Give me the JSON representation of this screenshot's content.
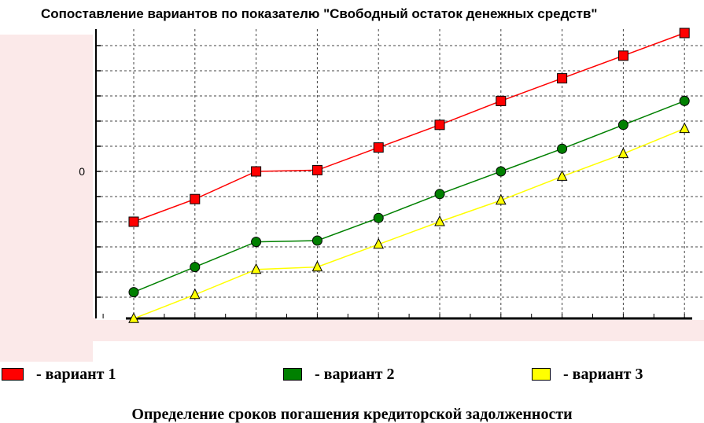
{
  "chart_data": {
    "type": "line",
    "title": "Сопоставление вариантов по показателю \"Свободный остаток денежных средств\"",
    "xlabel": "",
    "ylabel": "",
    "x": [
      1,
      2,
      3,
      4,
      5,
      6,
      7,
      8,
      9,
      10
    ],
    "y_tick_labels": [
      {
        "value": 0,
        "label": "0"
      }
    ],
    "ylim": [
      -6,
      5.5
    ],
    "grid": true,
    "legend_position": "bottom",
    "series": [
      {
        "name": "- вариант 1",
        "color": "#ff0000",
        "marker": "square",
        "values": [
          -2.0,
          -1.1,
          0.0,
          0.05,
          0.95,
          1.85,
          2.8,
          3.7,
          4.6,
          5.5
        ]
      },
      {
        "name": "- вариант 2",
        "color": "#008000",
        "marker": "circle",
        "values": [
          -4.8,
          -3.8,
          -2.8,
          -2.75,
          -1.85,
          -0.9,
          0.0,
          0.9,
          1.85,
          2.8
        ]
      },
      {
        "name": "- вариант 3",
        "color": "#ffff00",
        "marker": "triangle",
        "values": [
          -5.85,
          -4.9,
          -3.9,
          -3.8,
          -2.9,
          -2.0,
          -1.15,
          -0.2,
          0.7,
          1.7
        ]
      }
    ]
  },
  "footer": {
    "caption": "Определение сроков погашения кредиторской задолженности"
  }
}
